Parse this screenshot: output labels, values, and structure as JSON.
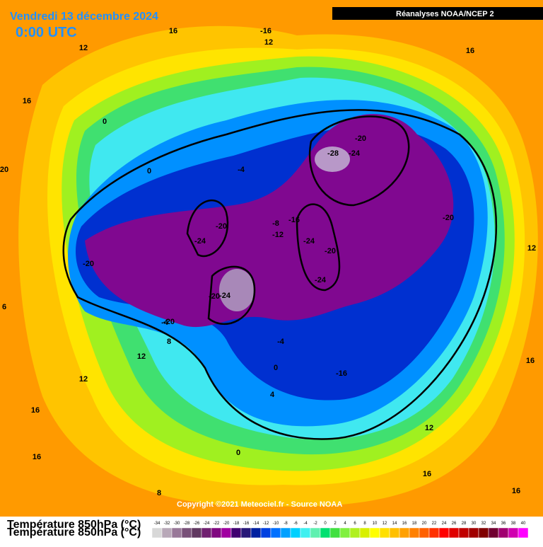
{
  "header": {
    "date": "Vendredi 13 décembre 2024",
    "time": "0:00 UTC",
    "source": "Réanalyses NOAA/NCEP 2"
  },
  "copyright": "Copyright ©2021 Meteociel.fr - Source NOAA",
  "legend": {
    "title": "Température 850hPa (°C)",
    "values": [
      -34,
      -32,
      -30,
      -28,
      -26,
      -24,
      -22,
      -20,
      -18,
      -16,
      -14,
      -12,
      -10,
      -8,
      -6,
      -4,
      -2,
      0,
      2,
      4,
      6,
      8,
      10,
      12,
      14,
      16,
      18,
      20,
      22,
      24,
      26,
      28,
      30,
      32,
      34,
      36,
      38,
      40
    ],
    "colors": [
      "#d8d8d8",
      "#b8a8b8",
      "#987898",
      "#785078",
      "#603860",
      "#702070",
      "#800880",
      "#a000a0",
      "#400070",
      "#281878",
      "#0020a0",
      "#0040e0",
      "#0070ff",
      "#00a0ff",
      "#00d0ff",
      "#40f0f0",
      "#60f0b0",
      "#00e070",
      "#40e040",
      "#80f040",
      "#b0f020",
      "#d8f000",
      "#ffff00",
      "#ffe000",
      "#ffc000",
      "#ffa000",
      "#ff8000",
      "#ff6000",
      "#ff3000",
      "#ff0000",
      "#e00000",
      "#c00000",
      "#a00000",
      "#800000",
      "#700030",
      "#a00070",
      "#d000b0",
      "#ff00ff"
    ]
  },
  "contour_labels": [
    "16",
    "-16",
    "12",
    "16",
    "12",
    "16",
    "0",
    "0",
    "-4",
    "-20",
    "-28",
    "-24",
    "-20",
    "-24",
    "-20",
    "-8",
    "-16",
    "-12",
    "-24",
    "-20",
    "-24",
    "-20",
    "-20",
    "-24",
    "-20",
    "12",
    "-4",
    "8",
    "12",
    "-4",
    "0",
    "-16",
    "12",
    "16",
    "4",
    "0",
    "12",
    "16",
    "16",
    "8",
    "16",
    "16",
    "20",
    "6"
  ]
}
